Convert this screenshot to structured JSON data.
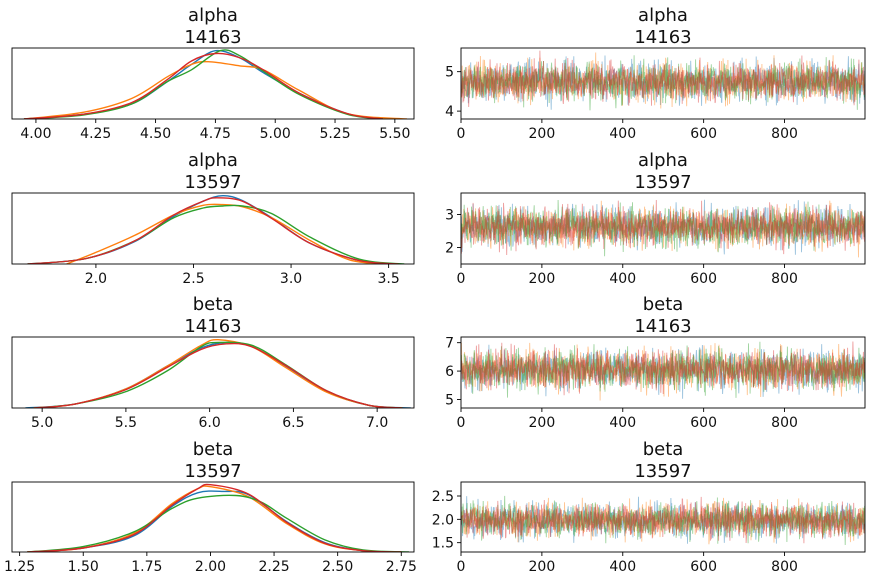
{
  "colors": [
    "#1f77b4",
    "#ff7f0e",
    "#2ca02c",
    "#d62728"
  ],
  "chart_data": [
    {
      "type": "line",
      "kind": "density",
      "title_line1": "alpha",
      "title_line2": "14163",
      "xlim": [
        3.9,
        5.58
      ],
      "xticks": [
        4.0,
        4.25,
        4.5,
        4.75,
        5.0,
        5.25,
        5.5
      ],
      "xtick_labels": [
        "4.00",
        "4.25",
        "4.50",
        "4.75",
        "5.00",
        "5.25",
        "5.50"
      ],
      "series": [
        {
          "x": [
            3.95,
            4.2,
            4.4,
            4.55,
            4.65,
            4.75,
            4.85,
            4.95,
            5.1,
            5.3,
            5.45
          ],
          "y": [
            0.0,
            0.07,
            0.22,
            0.55,
            0.8,
            1.0,
            0.9,
            0.68,
            0.38,
            0.08,
            0.0
          ]
        },
        {
          "x": [
            3.95,
            4.2,
            4.4,
            4.55,
            4.65,
            4.72,
            4.85,
            4.95,
            5.1,
            5.3,
            5.55
          ],
          "y": [
            0.0,
            0.1,
            0.3,
            0.62,
            0.8,
            0.84,
            0.78,
            0.72,
            0.42,
            0.08,
            0.0
          ]
        },
        {
          "x": [
            3.95,
            4.2,
            4.4,
            4.55,
            4.65,
            4.77,
            4.85,
            4.95,
            5.1,
            5.3,
            5.45
          ],
          "y": [
            0.0,
            0.06,
            0.22,
            0.55,
            0.72,
            1.0,
            0.93,
            0.7,
            0.36,
            0.07,
            0.0
          ]
        },
        {
          "x": [
            3.95,
            4.2,
            4.4,
            4.55,
            4.65,
            4.75,
            4.85,
            4.95,
            5.1,
            5.3,
            5.45
          ],
          "y": [
            0.0,
            0.07,
            0.24,
            0.58,
            0.85,
            0.96,
            0.9,
            0.72,
            0.38,
            0.08,
            0.0
          ]
        }
      ]
    },
    {
      "type": "line",
      "kind": "trace",
      "title_line1": "alpha",
      "title_line2": "14163",
      "xlim": [
        0,
        999
      ],
      "ylim": [
        3.8,
        5.6
      ],
      "xticks": [
        0,
        200,
        400,
        600,
        800
      ],
      "xtick_labels": [
        "0",
        "200",
        "400",
        "600",
        "800"
      ],
      "yticks": [
        4,
        5
      ],
      "ytick_labels": [
        "4",
        "5"
      ],
      "center": 4.74,
      "spread": 0.25
    },
    {
      "type": "line",
      "kind": "density",
      "title_line1": "alpha",
      "title_line2": "13597",
      "xlim": [
        1.57,
        3.63
      ],
      "xticks": [
        2.0,
        2.5,
        3.0,
        3.5
      ],
      "xtick_labels": [
        "2.0",
        "2.5",
        "3.0",
        "3.5"
      ],
      "series": [
        {
          "x": [
            1.65,
            1.95,
            2.2,
            2.4,
            2.55,
            2.65,
            2.75,
            2.9,
            3.1,
            3.35,
            3.55
          ],
          "y": [
            0.0,
            0.08,
            0.33,
            0.7,
            0.92,
            1.0,
            0.93,
            0.68,
            0.3,
            0.05,
            0.0
          ]
        },
        {
          "x": [
            1.85,
            2.0,
            2.2,
            2.4,
            2.55,
            2.65,
            2.75,
            2.9,
            3.1,
            3.3,
            3.5
          ],
          "y": [
            0.0,
            0.17,
            0.42,
            0.72,
            0.86,
            0.87,
            0.84,
            0.68,
            0.34,
            0.06,
            0.0
          ]
        },
        {
          "x": [
            1.65,
            1.95,
            2.2,
            2.4,
            2.55,
            2.65,
            2.75,
            2.9,
            3.1,
            3.35,
            3.58
          ],
          "y": [
            0.0,
            0.08,
            0.34,
            0.68,
            0.82,
            0.85,
            0.85,
            0.74,
            0.39,
            0.07,
            0.0
          ]
        },
        {
          "x": [
            1.65,
            1.95,
            2.2,
            2.4,
            2.55,
            2.62,
            2.75,
            2.9,
            3.1,
            3.35,
            3.55
          ],
          "y": [
            0.0,
            0.08,
            0.34,
            0.72,
            0.92,
            0.97,
            0.92,
            0.67,
            0.3,
            0.05,
            0.0
          ]
        }
      ]
    },
    {
      "type": "line",
      "kind": "trace",
      "title_line1": "alpha",
      "title_line2": "13597",
      "xlim": [
        0,
        999
      ],
      "ylim": [
        1.5,
        3.65
      ],
      "xticks": [
        0,
        200,
        400,
        600,
        800
      ],
      "xtick_labels": [
        "0",
        "200",
        "400",
        "600",
        "800"
      ],
      "yticks": [
        2,
        3
      ],
      "ytick_labels": [
        "2",
        "3"
      ],
      "center": 2.62,
      "spread": 0.3
    },
    {
      "type": "line",
      "kind": "density",
      "title_line1": "beta",
      "title_line2": "14163",
      "xlim": [
        4.82,
        7.22
      ],
      "xticks": [
        5.0,
        5.5,
        6.0,
        6.5,
        7.0
      ],
      "xtick_labels": [
        "5.0",
        "5.5",
        "6.0",
        "6.5",
        "7.0"
      ],
      "series": [
        {
          "x": [
            4.9,
            5.2,
            5.5,
            5.75,
            5.95,
            6.1,
            6.25,
            6.45,
            6.7,
            6.95,
            7.2
          ],
          "y": [
            0.0,
            0.06,
            0.28,
            0.62,
            0.88,
            0.96,
            0.9,
            0.62,
            0.24,
            0.04,
            0.0
          ]
        },
        {
          "x": [
            4.95,
            5.2,
            5.5,
            5.75,
            5.95,
            6.05,
            6.25,
            6.45,
            6.7,
            6.95,
            7.15
          ],
          "y": [
            0.0,
            0.06,
            0.28,
            0.62,
            0.92,
            1.0,
            0.9,
            0.6,
            0.23,
            0.04,
            0.0
          ]
        },
        {
          "x": [
            4.95,
            5.2,
            5.5,
            5.75,
            5.95,
            6.05,
            6.25,
            6.45,
            6.7,
            6.95,
            7.15
          ],
          "y": [
            0.0,
            0.06,
            0.24,
            0.55,
            0.9,
            0.96,
            0.92,
            0.64,
            0.25,
            0.04,
            0.0
          ]
        },
        {
          "x": [
            4.95,
            5.2,
            5.5,
            5.75,
            5.95,
            6.1,
            6.25,
            6.45,
            6.7,
            6.95,
            7.15
          ],
          "y": [
            0.0,
            0.06,
            0.27,
            0.6,
            0.86,
            0.94,
            0.9,
            0.63,
            0.25,
            0.04,
            0.0
          ]
        }
      ]
    },
    {
      "type": "line",
      "kind": "trace",
      "title_line1": "beta",
      "title_line2": "14163",
      "xlim": [
        0,
        999
      ],
      "ylim": [
        4.7,
        7.2
      ],
      "xticks": [
        0,
        200,
        400,
        600,
        800
      ],
      "xtick_labels": [
        "0",
        "200",
        "400",
        "600",
        "800"
      ],
      "yticks": [
        5,
        6,
        7
      ],
      "ytick_labels": [
        "5",
        "6",
        "7"
      ],
      "center": 6.05,
      "spread": 0.35
    },
    {
      "type": "line",
      "kind": "density",
      "title_line1": "beta",
      "title_line2": "13597",
      "xlim": [
        1.22,
        2.8
      ],
      "xticks": [
        1.25,
        1.5,
        1.75,
        2.0,
        2.25,
        2.5,
        2.75
      ],
      "xtick_labels": [
        "1.25",
        "1.50",
        "1.75",
        "2.00",
        "2.25",
        "2.50",
        "2.75"
      ],
      "series": [
        {
          "x": [
            1.28,
            1.5,
            1.7,
            1.85,
            1.95,
            2.05,
            2.15,
            2.3,
            2.45,
            2.6,
            2.75
          ],
          "y": [
            0.0,
            0.06,
            0.24,
            0.68,
            0.88,
            0.9,
            0.85,
            0.45,
            0.14,
            0.02,
            0.0
          ]
        },
        {
          "x": [
            1.28,
            1.5,
            1.7,
            1.85,
            1.95,
            2.0,
            2.15,
            2.3,
            2.45,
            2.6,
            2.75
          ],
          "y": [
            0.0,
            0.06,
            0.28,
            0.72,
            0.94,
            0.97,
            0.82,
            0.42,
            0.12,
            0.02,
            0.0
          ]
        },
        {
          "x": [
            1.28,
            1.5,
            1.7,
            1.85,
            1.95,
            2.1,
            2.2,
            2.3,
            2.45,
            2.6,
            2.78
          ],
          "y": [
            0.0,
            0.08,
            0.3,
            0.65,
            0.8,
            0.84,
            0.74,
            0.5,
            0.18,
            0.03,
            0.0
          ]
        },
        {
          "x": [
            1.28,
            1.5,
            1.7,
            1.85,
            1.95,
            2.0,
            2.15,
            2.3,
            2.45,
            2.6,
            2.75
          ],
          "y": [
            0.0,
            0.06,
            0.26,
            0.7,
            0.94,
            1.0,
            0.86,
            0.44,
            0.13,
            0.02,
            0.0
          ]
        }
      ]
    },
    {
      "type": "line",
      "kind": "trace",
      "title_line1": "beta",
      "title_line2": "13597",
      "xlim": [
        0,
        999
      ],
      "ylim": [
        1.3,
        2.8
      ],
      "xticks": [
        0,
        200,
        400,
        600,
        800
      ],
      "xtick_labels": [
        "0",
        "200",
        "400",
        "600",
        "800"
      ],
      "yticks": [
        1.5,
        2.0,
        2.5
      ],
      "ytick_labels": [
        "1.5",
        "2.0",
        "2.5"
      ],
      "center": 1.98,
      "spread": 0.18
    }
  ]
}
